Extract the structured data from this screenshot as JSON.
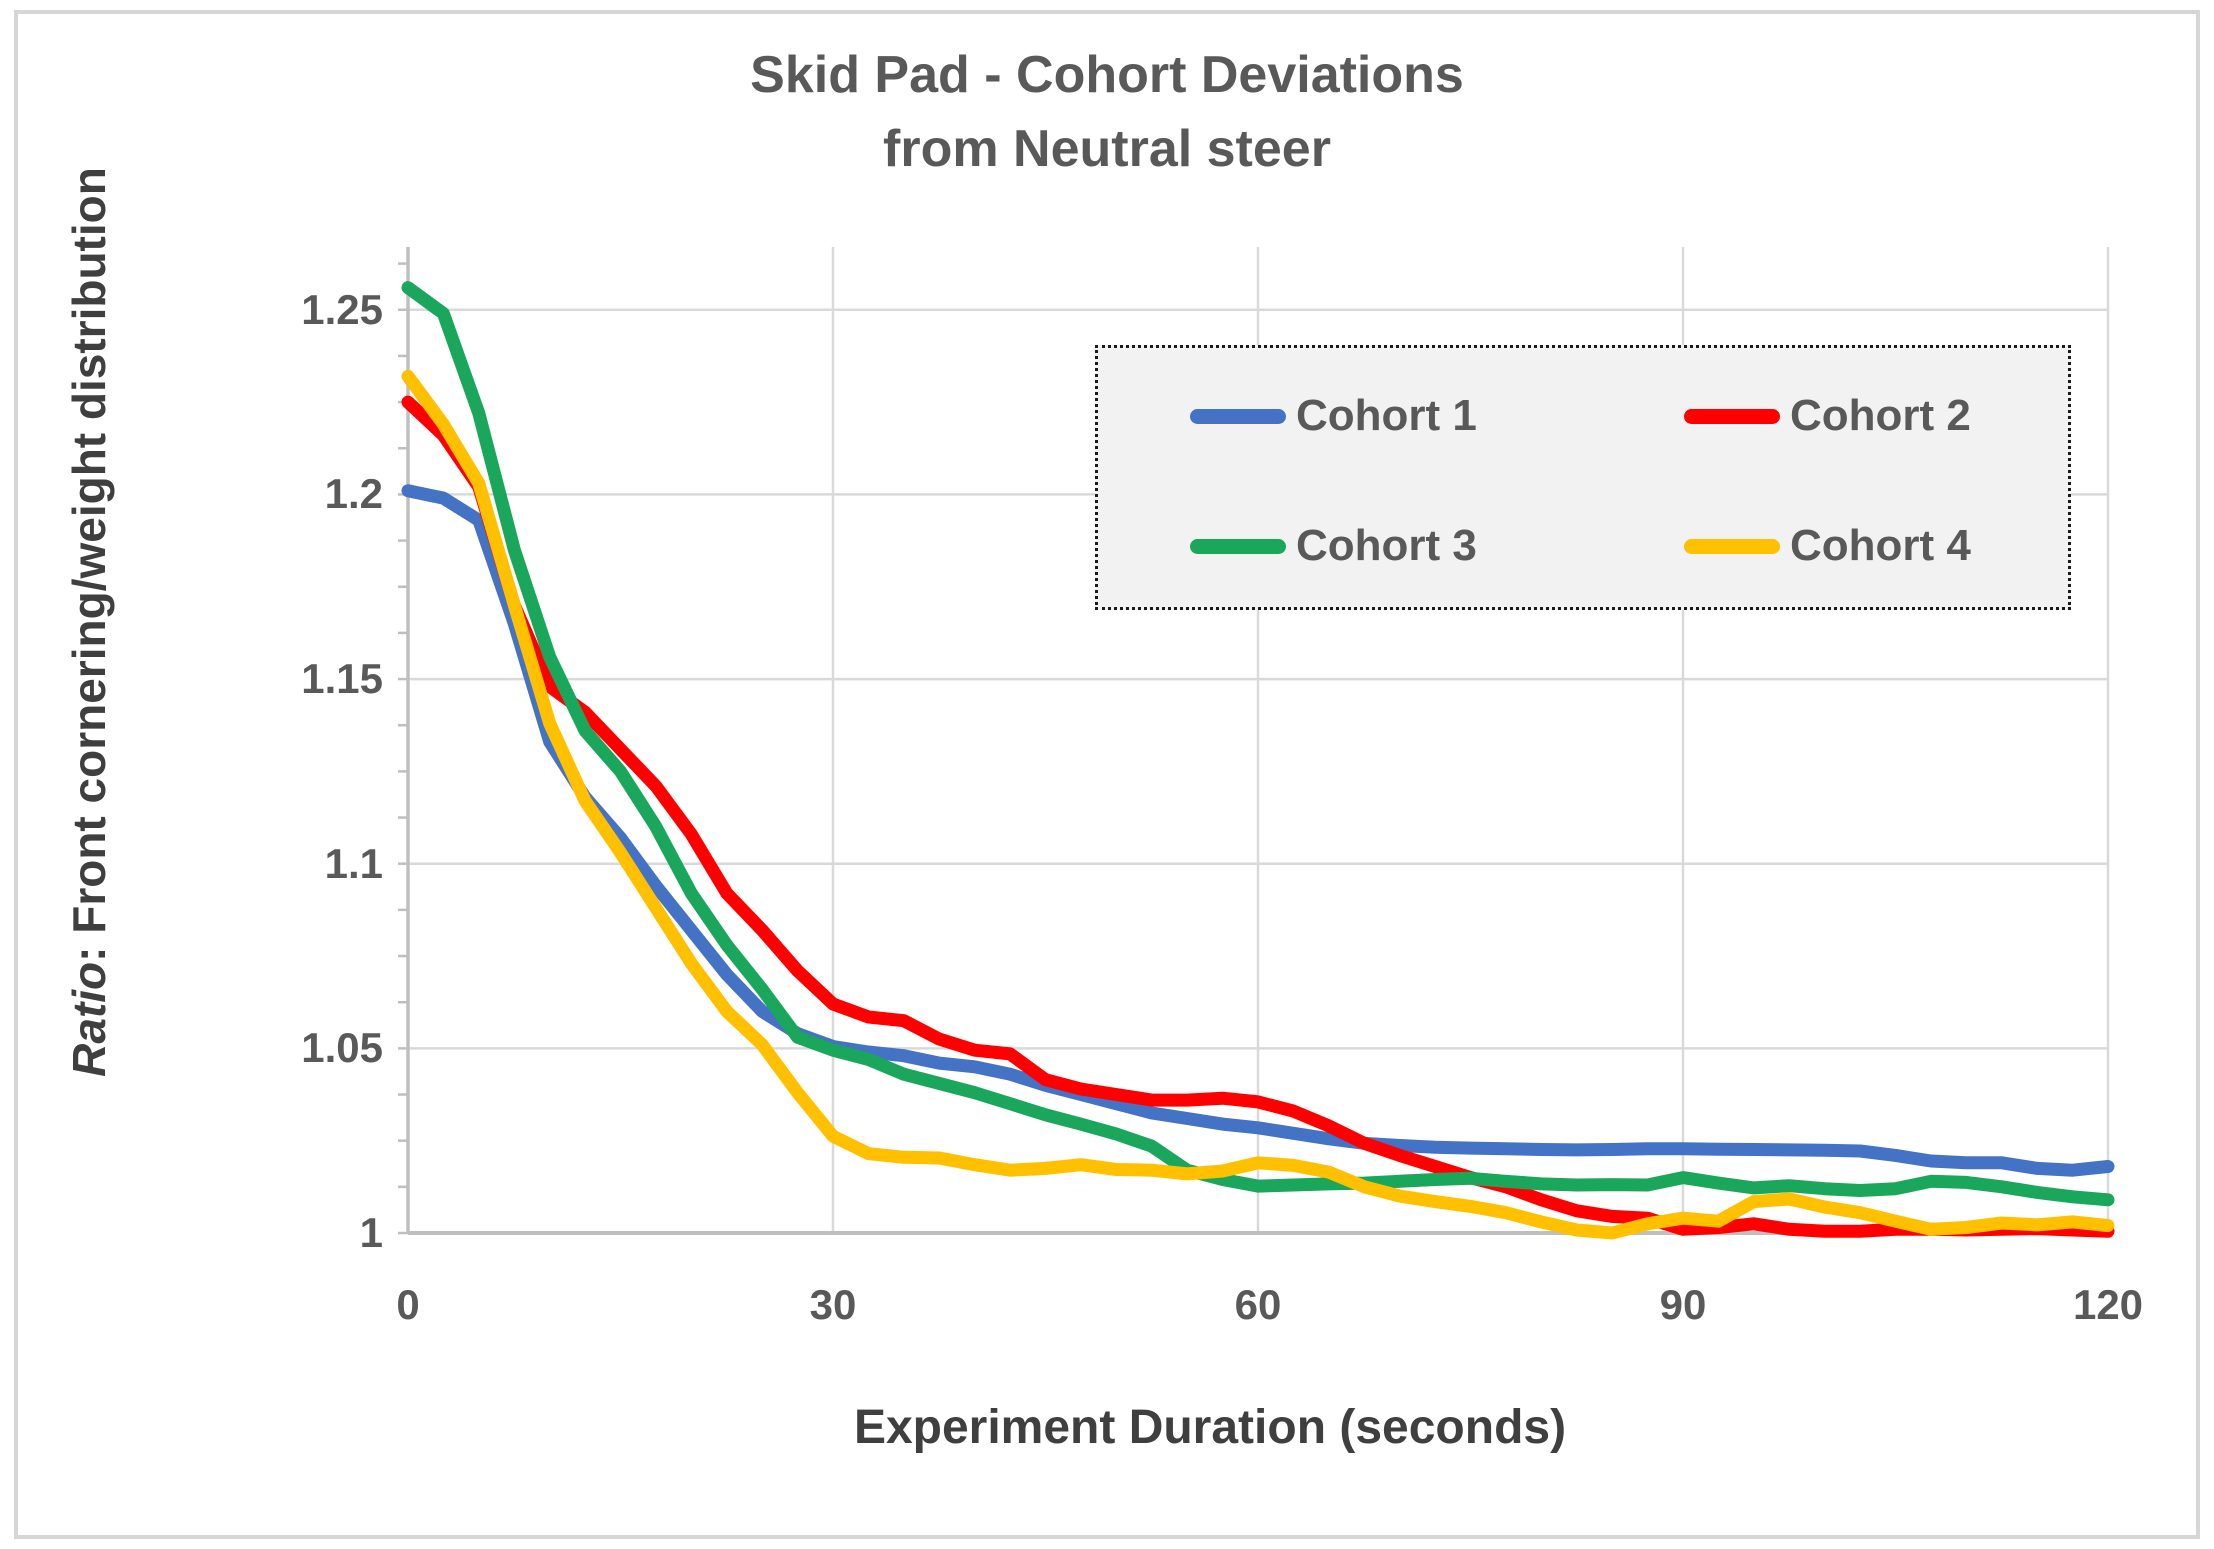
{
  "chart": {
    "title_line1": "Skid Pad - Cohort Deviations",
    "title_line2": "from Neutral steer",
    "y_axis_title_em": "Ratio",
    "y_axis_title_rest": ": Front cornering/weight distribution",
    "x_axis_title": "Experiment Duration (seconds)",
    "colors": {
      "title_text": "#595959",
      "axis_title_text": "#3f3f3f",
      "tick_text": "#595959",
      "gridline": "#d9d9d9",
      "axis_line": "#bfbfbf",
      "legend_fill": "#f2f2f2",
      "legend_border": "#1a1a1a",
      "frame_border": "#d6d6d6"
    },
    "legend": {
      "items": [
        {
          "label": "Cohort 1",
          "color": "#4472c4"
        },
        {
          "label": "Cohort 2",
          "color": "#fe0000"
        },
        {
          "label": "Cohort 3",
          "color": "#1aa75c"
        },
        {
          "label": "Cohort 4",
          "color": "#ffc000"
        }
      ]
    }
  },
  "chart_data": {
    "type": "line",
    "title": "Skid Pad - Cohort Deviations from Neutral steer",
    "xlabel": "Experiment Duration (seconds)",
    "ylabel": "Ratio: Front cornering/weight distribution",
    "xlim": [
      0,
      120
    ],
    "ylim": [
      1.0,
      1.267
    ],
    "x_ticks": [
      0,
      30,
      60,
      90,
      120
    ],
    "y_ticks": [
      1,
      1.05,
      1.1,
      1.15,
      1.2,
      1.25
    ],
    "y_minor_tick_step": 0.0125,
    "grid": true,
    "legend_position": "upper-right-inside",
    "x": [
      0,
      2.5,
      5,
      7.5,
      10,
      12.5,
      15,
      17.5,
      20,
      22.5,
      25,
      27.5,
      30,
      32.5,
      35,
      37.5,
      40,
      42.5,
      45,
      47.5,
      50,
      52.5,
      55,
      57.5,
      60,
      62.5,
      65,
      67.5,
      70,
      72.5,
      75,
      77.5,
      80,
      82.5,
      85,
      87.5,
      90,
      92.5,
      95,
      97.5,
      100,
      102.5,
      105,
      107.5,
      110,
      112.5,
      115,
      117.5,
      120
    ],
    "series": [
      {
        "name": "Cohort 1",
        "color": "#4472c4",
        "values": [
          1.201,
          1.199,
          1.193,
          1.165,
          1.133,
          1.118,
          1.107,
          1.094,
          1.082,
          1.07,
          1.06,
          1.054,
          1.0505,
          1.049,
          1.048,
          1.046,
          1.045,
          1.043,
          1.04,
          1.0375,
          1.035,
          1.0325,
          1.031,
          1.0295,
          1.0285,
          1.027,
          1.0255,
          1.0243,
          1.0237,
          1.0232,
          1.023,
          1.0228,
          1.0226,
          1.0225,
          1.0226,
          1.0228,
          1.0228,
          1.0227,
          1.0226,
          1.0225,
          1.0224,
          1.0222,
          1.021,
          1.0195,
          1.019,
          1.019,
          1.0175,
          1.017,
          1.018
        ]
      },
      {
        "name": "Cohort 2",
        "color": "#fe0000",
        "values": [
          1.225,
          1.216,
          1.202,
          1.17,
          1.148,
          1.141,
          1.131,
          1.121,
          1.108,
          1.092,
          1.082,
          1.071,
          1.062,
          1.0585,
          1.0575,
          1.0525,
          1.0495,
          1.0485,
          1.0415,
          1.039,
          1.0375,
          1.036,
          1.036,
          1.0365,
          1.0355,
          1.033,
          1.029,
          1.0243,
          1.021,
          1.018,
          1.015,
          1.0125,
          1.009,
          1.006,
          1.0045,
          1.004,
          1.001,
          1.0015,
          1.0025,
          1.001,
          1.0005,
          1.0005,
          1.001,
          1.001,
          1.0008,
          1.001,
          1.0012,
          1.0008,
          1.0005
        ]
      },
      {
        "name": "Cohort 3",
        "color": "#1aa75c",
        "values": [
          1.256,
          1.249,
          1.222,
          1.185,
          1.156,
          1.136,
          1.125,
          1.11,
          1.092,
          1.078,
          1.066,
          1.053,
          1.0495,
          1.047,
          1.043,
          1.0405,
          1.038,
          1.035,
          1.032,
          1.0295,
          1.0268,
          1.0235,
          1.017,
          1.0145,
          1.0127,
          1.013,
          1.0133,
          1.0135,
          1.014,
          1.0145,
          1.0148,
          1.014,
          1.0133,
          1.013,
          1.0131,
          1.013,
          1.015,
          1.0135,
          1.0122,
          1.0128,
          1.012,
          1.0115,
          1.012,
          1.014,
          1.0137,
          1.0125,
          1.011,
          1.0098,
          1.009
        ]
      },
      {
        "name": "Cohort 4",
        "color": "#ffc000",
        "values": [
          1.232,
          1.219,
          1.203,
          1.17,
          1.138,
          1.117,
          1.103,
          1.088,
          1.073,
          1.06,
          1.051,
          1.038,
          1.0262,
          1.0215,
          1.0205,
          1.0203,
          1.0185,
          1.017,
          1.0175,
          1.0185,
          1.0172,
          1.017,
          1.016,
          1.0168,
          1.019,
          1.0183,
          1.0165,
          1.0125,
          1.01,
          1.0085,
          1.0072,
          1.0055,
          1.003,
          1.0008,
          1.0,
          1.0025,
          1.004,
          1.0032,
          1.0085,
          1.0092,
          1.007,
          1.0055,
          1.0032,
          1.001,
          1.0015,
          1.0027,
          1.0022,
          1.003,
          1.002
        ]
      }
    ]
  }
}
